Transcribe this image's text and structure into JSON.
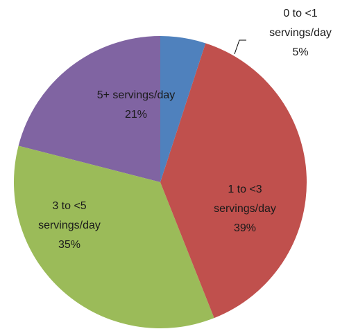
{
  "chart_data": {
    "type": "pie",
    "categories": [
      "0 to <1 servings/day",
      "1 to <3 servings/day",
      "3 to <5 servings/day",
      "5+ servings/day"
    ],
    "values": [
      5,
      39,
      35,
      21
    ],
    "value_labels": [
      "5%",
      "39%",
      "35%",
      "21%"
    ],
    "colors": [
      "#4f81bd",
      "#c0504d",
      "#9bbb59",
      "#8064a2"
    ]
  }
}
